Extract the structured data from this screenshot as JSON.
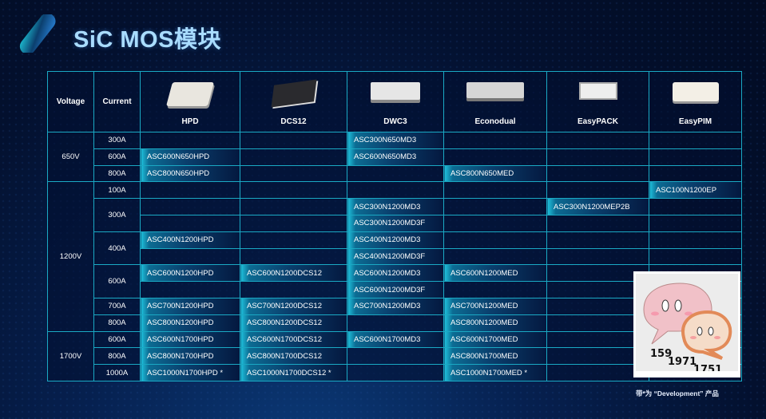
{
  "header": {
    "title": "SiC MOS模块"
  },
  "table": {
    "col_voltage": "Voltage",
    "col_current": "Current",
    "packages": [
      "HPD",
      "DCS12",
      "DWC3",
      "Econodual",
      "EasyPACK",
      "EasyPIM"
    ],
    "rows": [
      {
        "voltage": "650V",
        "vspan": 3,
        "current": "300A",
        "cspan": 1,
        "cells": [
          "",
          "",
          "ASC300N650MD3",
          "",
          "",
          ""
        ]
      },
      {
        "current": "600A",
        "cspan": 1,
        "cells": [
          "ASC600N650HPD",
          "",
          "ASC600N650MD3",
          "",
          "",
          ""
        ]
      },
      {
        "current": "800A",
        "cspan": 1,
        "cells": [
          "ASC800N650HPD",
          "",
          "",
          "ASC800N650MED",
          "",
          ""
        ]
      },
      {
        "voltage": "1200V",
        "vspan": 9,
        "current": "100A",
        "cspan": 1,
        "cells": [
          "",
          "",
          "",
          "",
          "",
          "ASC100N1200EP"
        ]
      },
      {
        "current": "300A",
        "cspan": 2,
        "cells": [
          "",
          "",
          "ASC300N1200MD3",
          "",
          "ASC300N1200MEP2B",
          ""
        ]
      },
      {
        "cells": [
          "",
          "",
          "ASC300N1200MD3F",
          "",
          "",
          ""
        ]
      },
      {
        "current": "400A",
        "cspan": 2,
        "cells": [
          "ASC400N1200HPD",
          "",
          "ASC400N1200MD3",
          "",
          "",
          ""
        ]
      },
      {
        "cells": [
          "",
          "",
          "ASC400N1200MD3F",
          "",
          "",
          ""
        ]
      },
      {
        "current": "600A",
        "cspan": 2,
        "cells": [
          "ASC600N1200HPD",
          "ASC600N1200DCS12",
          "ASC600N1200MD3",
          "ASC600N1200MED",
          "",
          ""
        ]
      },
      {
        "cells": [
          "",
          "",
          "ASC600N1200MD3F",
          "",
          "",
          ""
        ]
      },
      {
        "current": "700A",
        "cspan": 1,
        "cells": [
          "ASC700N1200HPD",
          "ASC700N1200DCS12",
          "ASC700N1200MD3",
          "ASC700N1200MED",
          "",
          ""
        ]
      },
      {
        "current": "800A",
        "cspan": 1,
        "cells": [
          "ASC800N1200HPD",
          "ASC800N1200DCS12",
          "",
          "ASC800N1200MED",
          "",
          ""
        ]
      },
      {
        "voltage": "1700V",
        "vspan": 3,
        "current": "600A",
        "cspan": 1,
        "cells": [
          "ASC600N1700HPD",
          "ASC600N1700DCS12",
          "ASC600N1700MD3",
          "ASC600N1700MED",
          "",
          ""
        ]
      },
      {
        "current": "800A",
        "cspan": 1,
        "cells": [
          "ASC800N1700HPD",
          "ASC800N1700DCS12",
          "",
          "ASC800N1700MED",
          "",
          ""
        ]
      },
      {
        "current": "1000A",
        "cspan": 1,
        "cells": [
          "ASC1000N1700HPD *",
          "ASC1000N1700DCS12 *",
          "",
          "ASC1000N1700MED *",
          "",
          ""
        ]
      }
    ]
  },
  "sticker": {
    "numbers": [
      "159",
      "1971",
      "1751"
    ]
  },
  "footnote": "带*为 “Development” 产品",
  "colors": {
    "accent": "#1fc1dc",
    "grid": "#1aa9c4",
    "title": "#a9dcff"
  }
}
